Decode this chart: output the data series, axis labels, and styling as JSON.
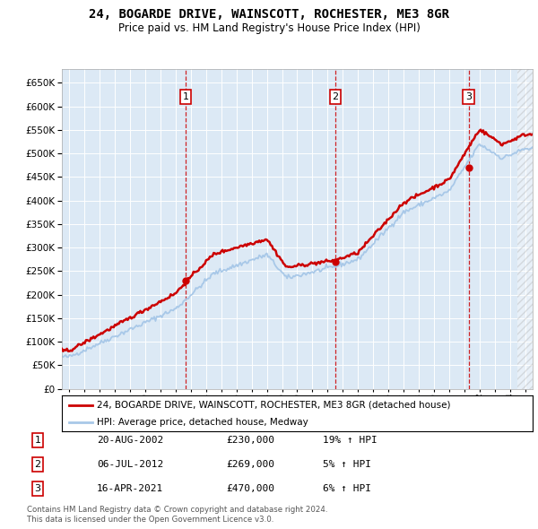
{
  "title": "24, BOGARDE DRIVE, WAINSCOTT, ROCHESTER, ME3 8GR",
  "subtitle": "Price paid vs. HM Land Registry's House Price Index (HPI)",
  "background_color": "#dce9f5",
  "plot_bg_color": "#dce9f5",
  "hpi_color": "#a8c8e8",
  "price_color": "#cc0000",
  "sale_dates": [
    2002.64,
    2012.51,
    2021.29
  ],
  "sale_prices": [
    230000,
    269000,
    470000
  ],
  "sale_labels": [
    "1",
    "2",
    "3"
  ],
  "legend_line1": "24, BOGARDE DRIVE, WAINSCOTT, ROCHESTER, ME3 8GR (detached house)",
  "legend_line2": "HPI: Average price, detached house, Medway",
  "table_rows": [
    {
      "num": "1",
      "date": "20-AUG-2002",
      "price": "£230,000",
      "hpi": "19% ↑ HPI"
    },
    {
      "num": "2",
      "date": "06-JUL-2012",
      "price": "£269,000",
      "hpi": "5% ↑ HPI"
    },
    {
      "num": "3",
      "date": "16-APR-2021",
      "price": "£470,000",
      "hpi": "6% ↑ HPI"
    }
  ],
  "footnote1": "Contains HM Land Registry data © Crown copyright and database right 2024.",
  "footnote2": "This data is licensed under the Open Government Licence v3.0.",
  "ylim": [
    0,
    680000
  ],
  "yticks": [
    0,
    50000,
    100000,
    150000,
    200000,
    250000,
    300000,
    350000,
    400000,
    450000,
    500000,
    550000,
    600000,
    650000
  ],
  "xlim_start": 1994.5,
  "xlim_end": 2025.5
}
